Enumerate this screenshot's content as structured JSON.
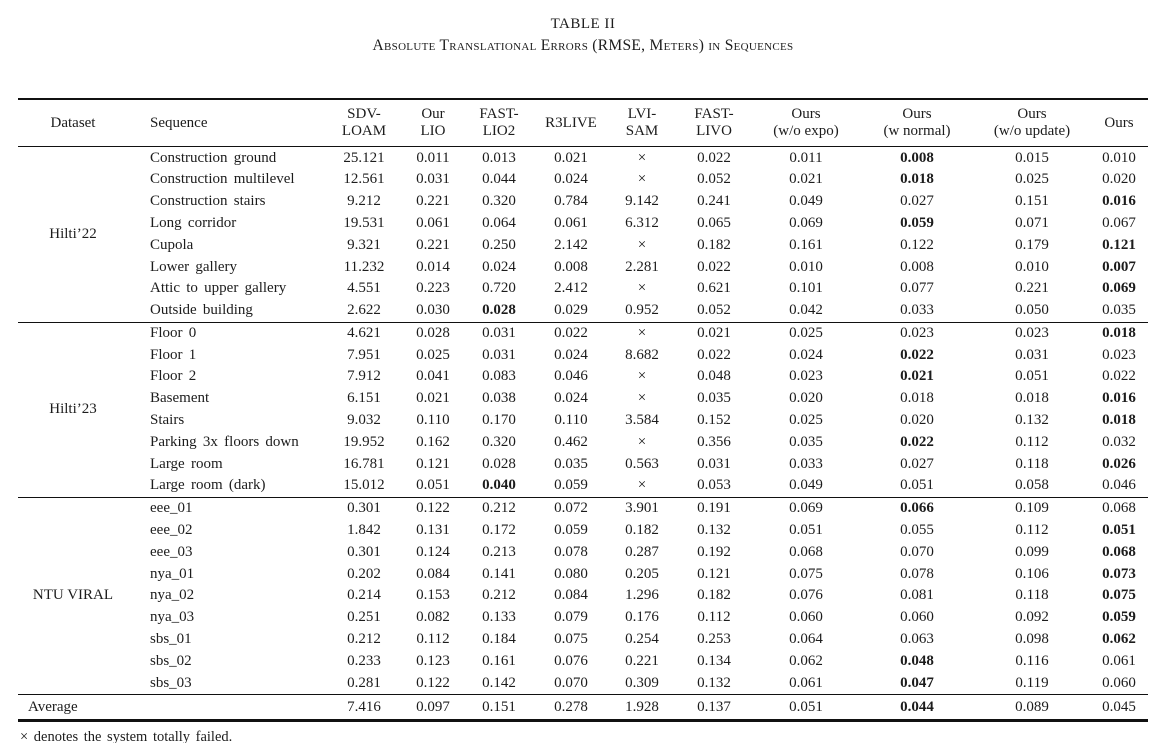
{
  "caption": {
    "label": "TABLE II",
    "title": "Absolute Translational Errors (RMSE, Meters) in Sequences"
  },
  "table": {
    "columns": [
      "Dataset",
      "Sequence",
      "SDV-\nLOAM",
      "Our\nLIO",
      "FAST-\nLIO2",
      "R3LIVE",
      "LVI-\nSAM",
      "FAST-\nLIVO",
      "Ours\n(w/o expo)",
      "Ours\n(w normal)",
      "Ours\n(w/o update)",
      "Ours"
    ],
    "failed_symbol": "×",
    "groups": [
      {
        "dataset": "Hilti’22",
        "rows": [
          {
            "sequence": "Construction ground",
            "values": [
              "25.121",
              "0.011",
              "0.013",
              "0.021",
              "×",
              "0.022",
              "0.011",
              "0.008",
              "0.015",
              "0.010"
            ],
            "bold": [
              7
            ]
          },
          {
            "sequence": "Construction multilevel",
            "values": [
              "12.561",
              "0.031",
              "0.044",
              "0.024",
              "×",
              "0.052",
              "0.021",
              "0.018",
              "0.025",
              "0.020"
            ],
            "bold": [
              7
            ]
          },
          {
            "sequence": "Construction stairs",
            "values": [
              "9.212",
              "0.221",
              "0.320",
              "0.784",
              "9.142",
              "0.241",
              "0.049",
              "0.027",
              "0.151",
              "0.016"
            ],
            "bold": [
              9
            ]
          },
          {
            "sequence": "Long corridor",
            "values": [
              "19.531",
              "0.061",
              "0.064",
              "0.061",
              "6.312",
              "0.065",
              "0.069",
              "0.059",
              "0.071",
              "0.067"
            ],
            "bold": [
              7
            ]
          },
          {
            "sequence": "Cupola",
            "values": [
              "9.321",
              "0.221",
              "0.250",
              "2.142",
              "×",
              "0.182",
              "0.161",
              "0.122",
              "0.179",
              "0.121"
            ],
            "bold": [
              9
            ]
          },
          {
            "sequence": "Lower gallery",
            "values": [
              "11.232",
              "0.014",
              "0.024",
              "0.008",
              "2.281",
              "0.022",
              "0.010",
              "0.008",
              "0.010",
              "0.007"
            ],
            "bold": [
              9
            ]
          },
          {
            "sequence": "Attic to upper gallery",
            "values": [
              "4.551",
              "0.223",
              "0.720",
              "2.412",
              "×",
              "0.621",
              "0.101",
              "0.077",
              "0.221",
              "0.069"
            ],
            "bold": [
              9
            ]
          },
          {
            "sequence": "Outside building",
            "values": [
              "2.622",
              "0.030",
              "0.028",
              "0.029",
              "0.952",
              "0.052",
              "0.042",
              "0.033",
              "0.050",
              "0.035"
            ],
            "bold": [
              2
            ]
          }
        ]
      },
      {
        "dataset": "Hilti’23",
        "rows": [
          {
            "sequence": "Floor 0",
            "values": [
              "4.621",
              "0.028",
              "0.031",
              "0.022",
              "×",
              "0.021",
              "0.025",
              "0.023",
              "0.023",
              "0.018"
            ],
            "bold": [
              9
            ]
          },
          {
            "sequence": "Floor 1",
            "values": [
              "7.951",
              "0.025",
              "0.031",
              "0.024",
              "8.682",
              "0.022",
              "0.024",
              "0.022",
              "0.031",
              "0.023"
            ],
            "bold": [
              7
            ]
          },
          {
            "sequence": "Floor 2",
            "values": [
              "7.912",
              "0.041",
              "0.083",
              "0.046",
              "×",
              "0.048",
              "0.023",
              "0.021",
              "0.051",
              "0.022"
            ],
            "bold": [
              7
            ]
          },
          {
            "sequence": "Basement",
            "values": [
              "6.151",
              "0.021",
              "0.038",
              "0.024",
              "×",
              "0.035",
              "0.020",
              "0.018",
              "0.018",
              "0.016"
            ],
            "bold": [
              9
            ]
          },
          {
            "sequence": "Stairs",
            "values": [
              "9.032",
              "0.110",
              "0.170",
              "0.110",
              "3.584",
              "0.152",
              "0.025",
              "0.020",
              "0.132",
              "0.018"
            ],
            "bold": [
              9
            ]
          },
          {
            "sequence": "Parking 3x floors down",
            "values": [
              "19.952",
              "0.162",
              "0.320",
              "0.462",
              "×",
              "0.356",
              "0.035",
              "0.022",
              "0.112",
              "0.032"
            ],
            "bold": [
              7
            ]
          },
          {
            "sequence": "Large room",
            "values": [
              "16.781",
              "0.121",
              "0.028",
              "0.035",
              "0.563",
              "0.031",
              "0.033",
              "0.027",
              "0.118",
              "0.026"
            ],
            "bold": [
              9
            ]
          },
          {
            "sequence": "Large room (dark)",
            "values": [
              "15.012",
              "0.051",
              "0.040",
              "0.059",
              "×",
              "0.053",
              "0.049",
              "0.051",
              "0.058",
              "0.046"
            ],
            "bold": [
              2
            ]
          }
        ]
      },
      {
        "dataset": "NTU VIRAL",
        "rows": [
          {
            "sequence": "eee_01",
            "values": [
              "0.301",
              "0.122",
              "0.212",
              "0.072",
              "3.901",
              "0.191",
              "0.069",
              "0.066",
              "0.109",
              "0.068"
            ],
            "bold": [
              7
            ]
          },
          {
            "sequence": "eee_02",
            "values": [
              "1.842",
              "0.131",
              "0.172",
              "0.059",
              "0.182",
              "0.132",
              "0.051",
              "0.055",
              "0.112",
              "0.051"
            ],
            "bold": [
              9
            ]
          },
          {
            "sequence": "eee_03",
            "values": [
              "0.301",
              "0.124",
              "0.213",
              "0.078",
              "0.287",
              "0.192",
              "0.068",
              "0.070",
              "0.099",
              "0.068"
            ],
            "bold": [
              9
            ]
          },
          {
            "sequence": "nya_01",
            "values": [
              "0.202",
              "0.084",
              "0.141",
              "0.080",
              "0.205",
              "0.121",
              "0.075",
              "0.078",
              "0.106",
              "0.073"
            ],
            "bold": [
              9
            ]
          },
          {
            "sequence": "nya_02",
            "values": [
              "0.214",
              "0.153",
              "0.212",
              "0.084",
              "1.296",
              "0.182",
              "0.076",
              "0.081",
              "0.118",
              "0.075"
            ],
            "bold": [
              9
            ]
          },
          {
            "sequence": "nya_03",
            "values": [
              "0.251",
              "0.082",
              "0.133",
              "0.079",
              "0.176",
              "0.112",
              "0.060",
              "0.060",
              "0.092",
              "0.059"
            ],
            "bold": [
              9
            ]
          },
          {
            "sequence": "sbs_01",
            "values": [
              "0.212",
              "0.112",
              "0.184",
              "0.075",
              "0.254",
              "0.253",
              "0.064",
              "0.063",
              "0.098",
              "0.062"
            ],
            "bold": [
              9
            ]
          },
          {
            "sequence": "sbs_02",
            "values": [
              "0.233",
              "0.123",
              "0.161",
              "0.076",
              "0.221",
              "0.134",
              "0.062",
              "0.048",
              "0.116",
              "0.061"
            ],
            "bold": [
              7
            ]
          },
          {
            "sequence": "sbs_03",
            "values": [
              "0.281",
              "0.122",
              "0.142",
              "0.070",
              "0.309",
              "0.132",
              "0.061",
              "0.047",
              "0.119",
              "0.060"
            ],
            "bold": [
              7
            ]
          }
        ]
      }
    ],
    "average": {
      "label": "Average",
      "values": [
        "7.416",
        "0.097",
        "0.151",
        "0.278",
        "1.928",
        "0.137",
        "0.051",
        "0.044",
        "0.089",
        "0.045"
      ],
      "bold": [
        7
      ]
    }
  },
  "footnote": "× denotes the system totally failed."
}
